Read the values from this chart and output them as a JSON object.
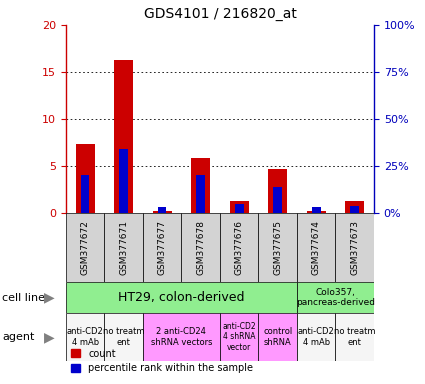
{
  "title": "GDS4101 / 216820_at",
  "samples": [
    "GSM377672",
    "GSM377671",
    "GSM377677",
    "GSM377678",
    "GSM377676",
    "GSM377675",
    "GSM377674",
    "GSM377673"
  ],
  "counts": [
    7.3,
    16.3,
    0.2,
    5.9,
    1.3,
    4.7,
    0.2,
    1.3
  ],
  "percentiles": [
    20.0,
    34.0,
    3.0,
    20.0,
    5.0,
    14.0,
    3.0,
    4.0
  ],
  "ylim_left": [
    0,
    20
  ],
  "ylim_right": [
    0,
    100
  ],
  "yticks_left": [
    0,
    5,
    10,
    15,
    20
  ],
  "yticks_right": [
    0,
    25,
    50,
    75,
    100
  ],
  "ytick_labels_left": [
    "0",
    "5",
    "10",
    "15",
    "20"
  ],
  "ytick_labels_right": [
    "0%",
    "25%",
    "50%",
    "75%",
    "100%"
  ],
  "bar_color_red": "#cc0000",
  "bar_color_blue": "#0000cc",
  "bar_width": 0.5,
  "background_color": "#ffffff",
  "tick_color_left": "#cc0000",
  "tick_color_right": "#0000bb",
  "grid_color": "#000000",
  "sample_box_color": "#d3d3d3",
  "cell_line_green": "#90ee90",
  "agent_pink": "#ff99ff",
  "agent_white": "#f5f5f5"
}
